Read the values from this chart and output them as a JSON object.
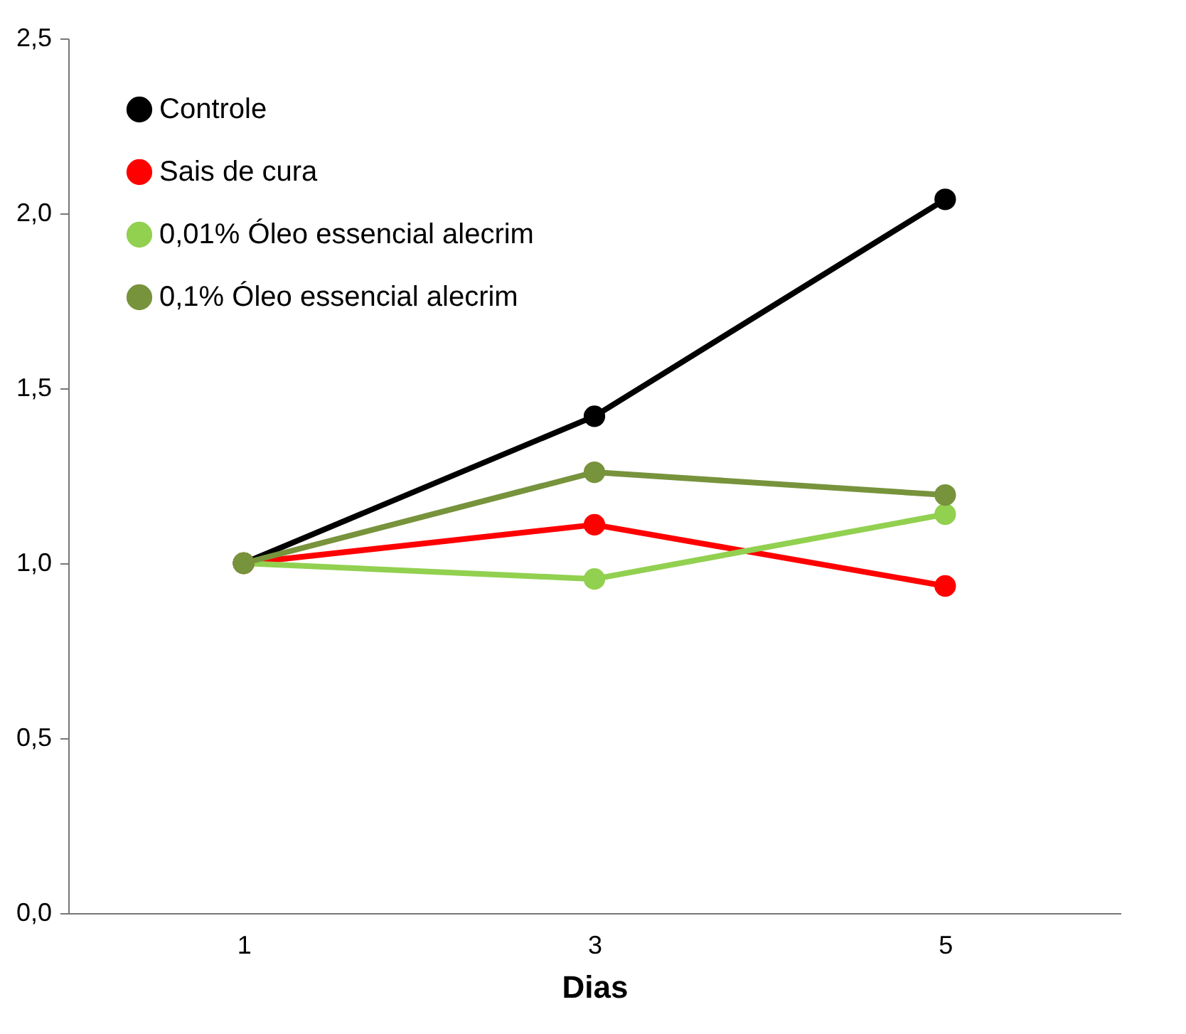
{
  "chart_data": {
    "type": "line",
    "xlabel": "Dias",
    "categories": [
      "1",
      "3",
      "5"
    ],
    "series": [
      {
        "name": "Controle",
        "color": "#000000",
        "values": [
          1.0,
          1.42,
          2.04
        ]
      },
      {
        "name": "Sais de cura",
        "color": "#ff0000",
        "values": [
          1.0,
          1.11,
          0.935
        ]
      },
      {
        "name": "0,01% Óleo essencial alecrim",
        "color": "#92d050",
        "values": [
          1.0,
          0.955,
          1.14
        ]
      },
      {
        "name": "0,1% Óleo essencial alecrim",
        "color": "#77933c",
        "values": [
          1.0,
          1.26,
          1.195
        ]
      }
    ],
    "ylim": [
      0,
      2.5
    ],
    "yticks": [
      {
        "value": 0,
        "label": "0,0"
      },
      {
        "value": 0.5,
        "label": "0,5"
      },
      {
        "value": 1,
        "label": "1,0"
      },
      {
        "value": 1.5,
        "label": "1,5"
      },
      {
        "value": 2,
        "label": "2,0"
      },
      {
        "value": 2.5,
        "label": "2,5"
      }
    ],
    "grid": false,
    "legend": "top left",
    "marker": "circle",
    "line_style": "solid"
  }
}
